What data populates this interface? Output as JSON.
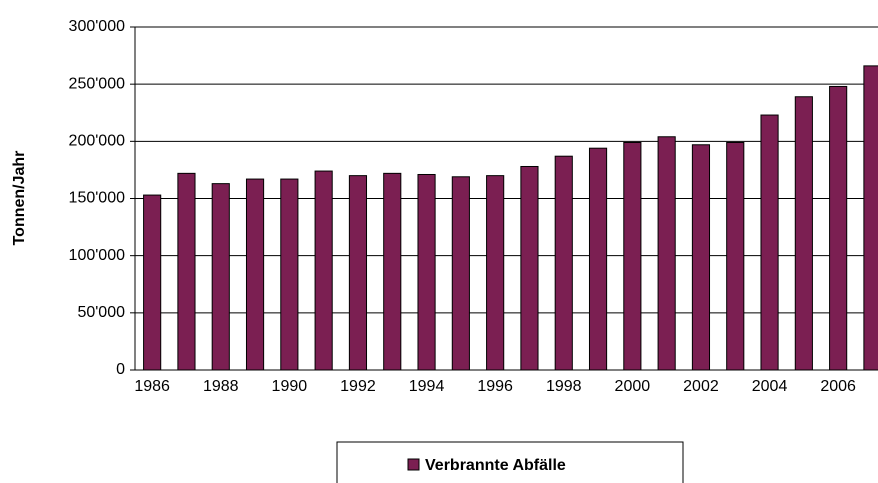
{
  "chart_data": {
    "type": "bar",
    "y_label": "Tonnen/Jahr",
    "categories": [
      "1986",
      null,
      "1988",
      null,
      "1990",
      null,
      "1992",
      null,
      "1994",
      null,
      "1996",
      null,
      "1998",
      null,
      "2000",
      null,
      "2002",
      null,
      "2004",
      null,
      "2006",
      null
    ],
    "series": [
      {
        "name": "Verbrannte Abfälle",
        "color": "#7b1f52",
        "values": [
          153000,
          172000,
          163000,
          167000,
          167000,
          174000,
          170000,
          172000,
          171000,
          169000,
          170000,
          178000,
          187000,
          194000,
          199000,
          204000,
          197000,
          199000,
          223000,
          239000,
          248000,
          266000
        ]
      }
    ],
    "ylim": [
      0,
      300000
    ],
    "yticks": [
      0,
      {
        "value": 50000,
        "label": "50'000"
      },
      {
        "value": 100000,
        "label": "100'000"
      },
      {
        "value": 150000,
        "label": "150'000"
      },
      {
        "value": 200000,
        "label": "200'000"
      },
      {
        "value": 250000,
        "label": "250'000"
      },
      {
        "value": 300000,
        "label": "300'000"
      }
    ],
    "grid": true
  }
}
